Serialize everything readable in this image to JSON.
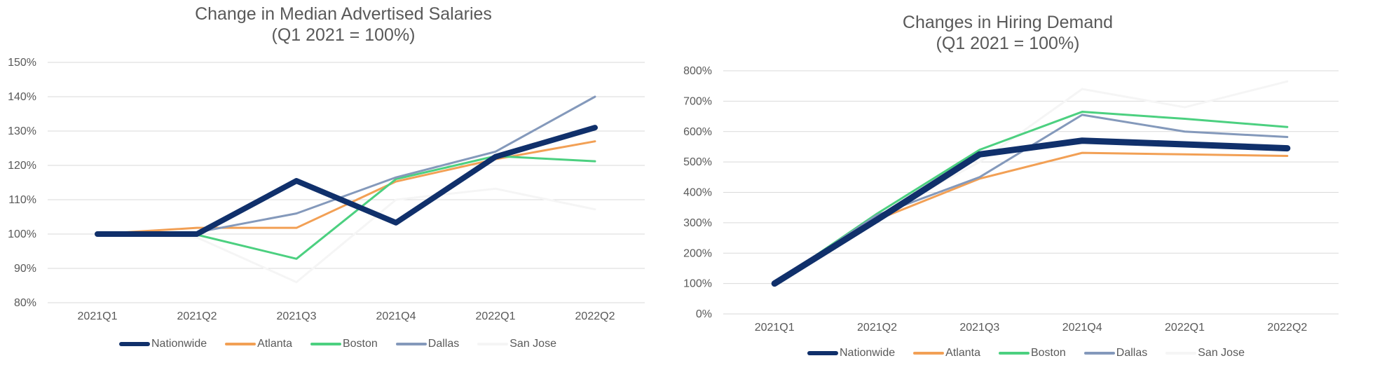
{
  "chart_data": [
    {
      "type": "line",
      "title": [
        "Change in Median Advertised Salaries",
        "(Q1 2021 = 100%)"
      ],
      "xlabel": "",
      "ylabel": "",
      "categories": [
        "2021Q1",
        "2021Q2",
        "2021Q3",
        "2021Q4",
        "2022Q1",
        "2022Q2"
      ],
      "ylim": [
        80,
        150
      ],
      "yticks": [
        80,
        90,
        100,
        110,
        120,
        130,
        140,
        150
      ],
      "ytick_labels": [
        "80%",
        "90%",
        "100%",
        "110%",
        "120%",
        "130%",
        "140%",
        "150%"
      ],
      "grid": true,
      "legend_position": "bottom",
      "series": [
        {
          "name": "Nationwide",
          "color": "#10306b",
          "values": [
            100,
            100,
            115.5,
            103.3,
            122.5,
            131
          ]
        },
        {
          "name": "Atlanta",
          "color": "#f2a055",
          "values": [
            100,
            101.8,
            101.8,
            115.3,
            121.8,
            127
          ]
        },
        {
          "name": "Boston",
          "color": "#4cd080",
          "values": [
            100,
            99.8,
            92.8,
            116,
            122.7,
            121.2
          ]
        },
        {
          "name": "Dallas",
          "color": "#8499bb",
          "values": [
            100,
            100.5,
            106,
            116.5,
            124,
            140
          ]
        },
        {
          "name": "San Jose",
          "color": "#f5f5f5",
          "values": [
            100,
            99,
            86,
            110,
            113.2,
            107.2
          ]
        }
      ]
    },
    {
      "type": "line",
      "title": [
        "Changes in Hiring Demand",
        "(Q1 2021 = 100%)"
      ],
      "xlabel": "",
      "ylabel": "",
      "categories": [
        "2021Q1",
        "2021Q2",
        "2021Q3",
        "2021Q4",
        "2022Q1",
        "2022Q2"
      ],
      "ylim": [
        0,
        800
      ],
      "yticks": [
        0,
        100,
        200,
        300,
        400,
        500,
        600,
        700,
        800
      ],
      "ytick_labels": [
        "0%",
        "100%",
        "200%",
        "300%",
        "400%",
        "500%",
        "600%",
        "700%",
        "800%"
      ],
      "grid": true,
      "legend_position": "bottom",
      "series": [
        {
          "name": "Nationwide",
          "color": "#10306b",
          "values": [
            100,
            310,
            525,
            570,
            558,
            545
          ]
        },
        {
          "name": "Atlanta",
          "color": "#f2a055",
          "values": [
            100,
            310,
            445,
            530,
            525,
            520
          ]
        },
        {
          "name": "Boston",
          "color": "#4cd080",
          "values": [
            100,
            330,
            540,
            665,
            642,
            615
          ]
        },
        {
          "name": "Dallas",
          "color": "#8499bb",
          "values": [
            100,
            325,
            450,
            655,
            600,
            582
          ]
        },
        {
          "name": "San Jose",
          "color": "#f5f5f5",
          "values": [
            100,
            320,
            500,
            740,
            680,
            765
          ]
        }
      ]
    }
  ]
}
